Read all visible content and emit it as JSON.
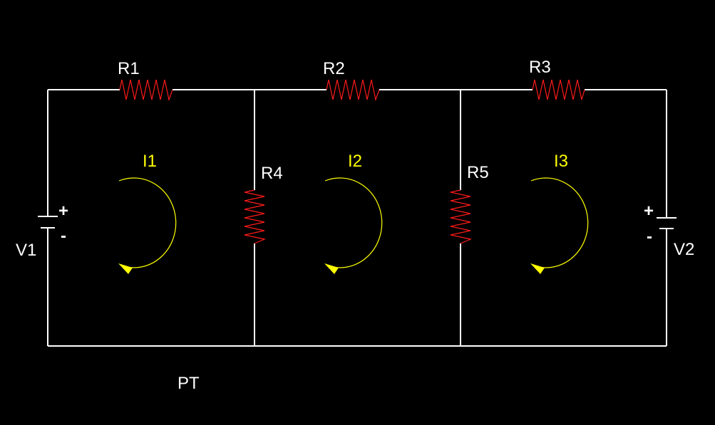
{
  "resistors": {
    "r1": "R1",
    "r2": "R2",
    "r3": "R3",
    "r4": "R4",
    "r5": "R5"
  },
  "sources": {
    "v1": {
      "label": "V1",
      "plus": "+",
      "minus": "-"
    },
    "v2": {
      "label": "V2",
      "plus": "+",
      "minus": "-"
    }
  },
  "loops": {
    "i1": "I1",
    "i2": "I2",
    "i3": "I3"
  },
  "footer": {
    "text": "PT"
  },
  "colors": {
    "background": "#000000",
    "wire": "#ffffff",
    "resistor": "#ff1a1a",
    "loop": "#ffff00"
  }
}
